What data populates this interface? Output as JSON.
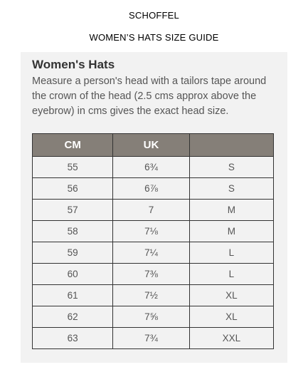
{
  "header": {
    "brand": "SCHOFFEL",
    "title": "WOMEN’S HATS SIZE GUIDE"
  },
  "panel": {
    "heading": "Women's Hats",
    "description": "Measure a person's head with a tailors tape around the crown of the head (2.5 cms approx above the eyebrow) in cms gives the exact head size."
  },
  "table": {
    "headers": [
      "CM",
      "UK",
      ""
    ],
    "rows": [
      [
        "55",
        "6¾",
        "S"
      ],
      [
        "56",
        "6⅞",
        "S"
      ],
      [
        "57",
        "7",
        "M"
      ],
      [
        "58",
        "7⅛",
        "M"
      ],
      [
        "59",
        "7¼",
        "L"
      ],
      [
        "60",
        "7⅜",
        "L"
      ],
      [
        "61",
        "7½",
        "XL"
      ],
      [
        "62",
        "7⅝",
        "XL"
      ],
      [
        "63",
        "7¾",
        "XXL"
      ]
    ]
  },
  "colors": {
    "header_bg": "#857f78",
    "panel_bg": "#f2f2f2"
  }
}
